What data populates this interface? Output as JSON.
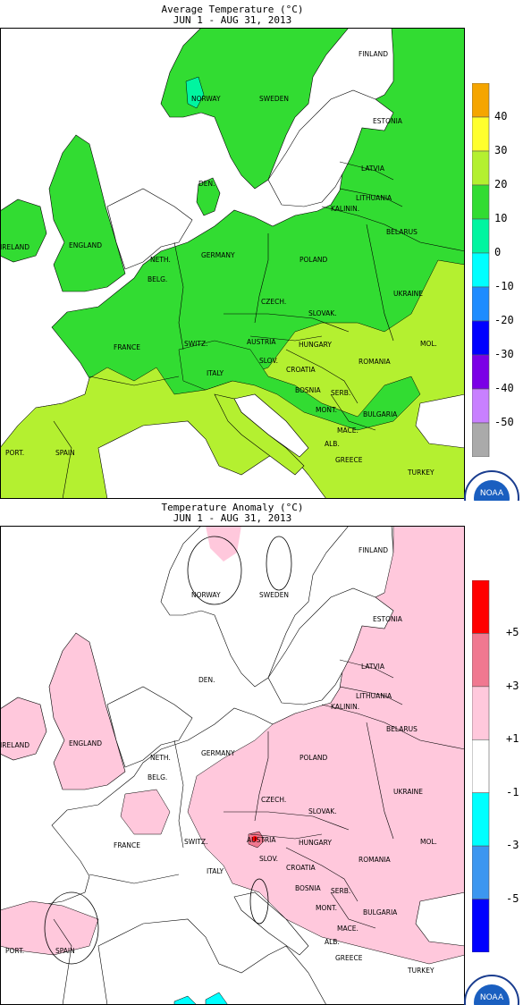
{
  "panels": [
    {
      "title": "Average Temperature (°C)",
      "subtitle": "JUN  1 - AUG 31, 2013",
      "colorbar": {
        "colors": [
          "#f5a500",
          "#ffff2d",
          "#b4f030",
          "#32dc32",
          "#00f5a0",
          "#00ffff",
          "#1e8cff",
          "#0000ff",
          "#7b00e6",
          "#c880ff",
          "#aaaaaa"
        ],
        "ticks": [
          "40",
          "30",
          "20",
          "10",
          "0",
          "-10",
          "-20",
          "-30",
          "-40",
          "-50"
        ]
      }
    },
    {
      "title": "Temperature Anomaly (°C)",
      "subtitle": "JUN  1 - AUG 31, 2013",
      "colorbar": {
        "colors": [
          "#ff0000",
          "#f07890",
          "#ffc8dc",
          "#ffffff",
          "#00ffff",
          "#3c96f0",
          "#0000ff"
        ],
        "ticks": [
          "+5",
          "+3",
          "+1",
          "-1",
          "-3",
          "-5"
        ]
      }
    }
  ],
  "countries_top": [
    "FINLAND",
    "NORWAY",
    "SWEDEN",
    "ESTONIA",
    "LATVIA",
    "DEN.",
    "LITHUANIA",
    "KALININ.",
    "BELARUS",
    "IRELAND",
    "ENGLAND",
    "NETH.",
    "BELG.",
    "GERMANY",
    "POLAND",
    "UKRAINE",
    "CZECH.",
    "SLOVAK.",
    "FRANCE",
    "SWITZ.",
    "AUSTRIA",
    "HUNGARY",
    "MOL.",
    "SLOV.",
    "ROMANIA",
    "ITALY",
    "CROATIA",
    "BOSNIA",
    "SERB.",
    "MONT.",
    "BULGARIA",
    "MACE.",
    "ALB.",
    "PORT.",
    "SPAIN",
    "GREECE",
    "TURKEY"
  ],
  "countries_bottom": [
    "FINLAND",
    "NORWAY",
    "SWEDEN",
    "ESTONIA",
    "LATVIA",
    "DEN.",
    "LITHUANIA",
    "KALININ.",
    "BELARUS",
    "IRELAND",
    "ENGLAND",
    "NETH.",
    "BELG.",
    "GERMANY",
    "POLAND",
    "UKRAINE",
    "CZECH.",
    "SLOVAK.",
    "FRANCE",
    "SWITZ.",
    "AUSTRIA",
    "HUNGARY",
    "MOL.",
    "SLOV.",
    "ROMANIA",
    "ITALY",
    "CROATIA",
    "BOSNIA",
    "SERB.",
    "MONT.",
    "BULGARIA",
    "MACE.",
    "ALB.",
    "PORT.",
    "SPAIN",
    "GREECE",
    "TURKEY"
  ],
  "logo": {
    "text": "NOAA",
    "ring_text": "NATIONAL OCEANIC AND ATMOSPHERIC ADMINISTRATION"
  },
  "map_colors": {
    "sea": "#ffffff",
    "land_10_20": "#32dc32",
    "land_20_30": "#b4f030",
    "land_0_10": "#00f5a0",
    "anom_1_3": "#ffc8dc",
    "anom_3_5": "#f07890",
    "anom_0": "#ffffff",
    "anom_neg": "#00ffff"
  }
}
